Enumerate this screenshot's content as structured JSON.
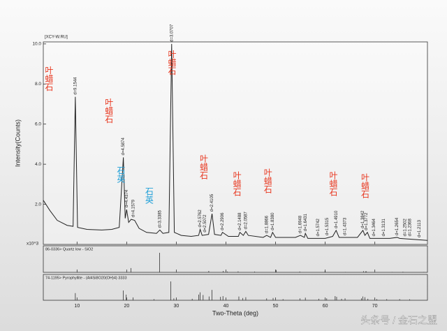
{
  "chart_data": {
    "type": "line",
    "title": "[XCY-W.RU]",
    "xlabel": "Two-Theta (deg)",
    "ylabel": "Intensity(Counts)",
    "y_multiplier": "x10^3",
    "color": "#222222",
    "x": [
      3.2,
      4.5,
      6,
      8,
      9.2,
      9.65,
      10.1,
      12,
      15,
      17,
      18.5,
      19.33,
      19.7,
      19.99,
      20.4,
      20.9,
      21.6,
      22.5,
      24,
      26,
      26.68,
      27.3,
      28.5,
      29.06,
      29.6,
      31,
      33,
      34.5,
      34.8,
      35.2,
      36.5,
      37.2,
      37.7,
      39,
      39.3,
      40.5,
      42.5,
      42.8,
      43.5,
      44.0,
      44.5,
      47.5,
      48.2,
      49.0,
      49.4,
      50,
      54,
      55,
      55.8,
      56.0,
      56.5,
      60,
      61.5,
      62.2,
      62.8,
      66.5,
      67.6,
      68.0,
      68.5,
      69,
      73,
      74.5,
      75,
      80.6
    ],
    "values": [
      2.2,
      1.7,
      1.2,
      0.95,
      0.9,
      7.36,
      0.85,
      0.75,
      0.72,
      0.75,
      0.85,
      4.34,
      1.3,
      1.74,
      1.1,
      1.25,
      1.2,
      0.8,
      0.6,
      0.55,
      0.72,
      0.55,
      0.6,
      10.0,
      0.6,
      0.45,
      0.4,
      0.45,
      0.75,
      0.45,
      0.5,
      1.53,
      0.5,
      0.45,
      0.6,
      0.4,
      0.4,
      0.6,
      0.45,
      0.65,
      0.45,
      0.35,
      0.45,
      0.35,
      0.6,
      0.35,
      0.35,
      0.45,
      0.35,
      0.55,
      0.3,
      0.3,
      0.4,
      0.7,
      0.35,
      0.35,
      0.7,
      0.45,
      0.6,
      0.3,
      0.3,
      0.35,
      0.3,
      0.2
    ],
    "xlim": [
      3.2,
      80.6
    ],
    "ylim": [
      0,
      10.1
    ],
    "xticks": [
      10,
      20,
      30,
      40,
      50,
      60,
      70
    ],
    "yticks": [
      {
        "value": 2,
        "label": "2.0"
      },
      {
        "value": 4,
        "label": "4.0"
      },
      {
        "value": 6,
        "label": "6.0"
      },
      {
        "value": 8,
        "label": "8.0"
      },
      {
        "value": 10,
        "label": "10.0"
      }
    ],
    "peak_labels": [
      {
        "text": "d=9.1544",
        "x": 9.65,
        "y": 7.36
      },
      {
        "text": "d=4.5874",
        "x": 19.33,
        "y": 4.34
      },
      {
        "text": "d=4.4374",
        "x": 19.99,
        "y": 1.74
      },
      {
        "text": "d=4.1579",
        "x": 21.35,
        "y": 1.25
      },
      {
        "text": "d=3.3385",
        "x": 26.68,
        "y": 0.72
      },
      {
        "text": "d=3.0707",
        "x": 29.06,
        "y": 10.0
      },
      {
        "text": "d=2.5762",
        "x": 34.8,
        "y": 0.75
      },
      {
        "text": "d=2.5072",
        "x": 35.8,
        "y": 0.5
      },
      {
        "text": "d=2.4105",
        "x": 37.2,
        "y": 1.53
      },
      {
        "text": "d=2.2906",
        "x": 39.3,
        "y": 0.6
      },
      {
        "text": "d=2.1488",
        "x": 42.8,
        "y": 0.6
      },
      {
        "text": "d=2.0587",
        "x": 44.0,
        "y": 0.65
      },
      {
        "text": "d=1.8866",
        "x": 48.2,
        "y": 0.45
      },
      {
        "text": "d=1.8380",
        "x": 49.4,
        "y": 0.6
      },
      {
        "text": "d=1.6948",
        "x": 55.0,
        "y": 0.45
      },
      {
        "text": "d=1.6431",
        "x": 56.0,
        "y": 0.55
      },
      {
        "text": "d=1.5742",
        "x": 58.6,
        "y": 0.3
      },
      {
        "text": "d=1.5315",
        "x": 60.4,
        "y": 0.35
      },
      {
        "text": "d=1.4910",
        "x": 62.2,
        "y": 0.7
      },
      {
        "text": "d=1.4373",
        "x": 64.0,
        "y": 0.35
      },
      {
        "text": "d=1.3842",
        "x": 67.6,
        "y": 0.7
      },
      {
        "text": "d=1.3772",
        "x": 68.3,
        "y": 0.6
      },
      {
        "text": "d=1.3464",
        "x": 69.8,
        "y": 0.3
      },
      {
        "text": "d=1.3131",
        "x": 71.8,
        "y": 0.3
      },
      {
        "text": "d=1.2654",
        "x": 74.5,
        "y": 0.35
      },
      {
        "text": "d=1.2502",
        "x": 76.1,
        "y": 0.3
      },
      {
        "text": "d=1.2368",
        "x": 77.1,
        "y": 0.3
      },
      {
        "text": "d=1.2113",
        "x": 79.0,
        "y": 0.25
      }
    ],
    "phase_labels": [
      {
        "text": "叶蜡石",
        "x": 4.3,
        "y": 8.9,
        "color": "#e8371f"
      },
      {
        "text": "叶蜡石",
        "x": 16.4,
        "y": 7.3,
        "color": "#e8371f"
      },
      {
        "text": "石英",
        "x": 18.8,
        "y": 3.9,
        "color": "#1e9fd8"
      },
      {
        "text": "石英",
        "x": 24.5,
        "y": 2.85,
        "color": "#1e9fd8"
      },
      {
        "text": "叶蜡石",
        "x": 29.1,
        "y": 9.7,
        "color": "#e8371f"
      },
      {
        "text": "叶蜡石",
        "x": 35.5,
        "y": 4.5,
        "color": "#e8371f"
      },
      {
        "text": "叶蜡石",
        "x": 42.2,
        "y": 3.65,
        "color": "#e8371f"
      },
      {
        "text": "叶蜡石",
        "x": 48.4,
        "y": 3.8,
        "color": "#e8371f"
      },
      {
        "text": "叶蜡石",
        "x": 61.6,
        "y": 3.65,
        "color": "#e8371f"
      },
      {
        "text": "叶蜡石",
        "x": 68.0,
        "y": 3.55,
        "color": "#e8371f"
      }
    ],
    "references": [
      {
        "title": "86-0336> Quartz low - SiO2",
        "ylim": [
          0,
          100
        ],
        "x": [
          20.86,
          26.64,
          36.54,
          39.46,
          40.29,
          42.45,
          45.79,
          50.14,
          54.87,
          59.96,
          64.04,
          67.74,
          68.14,
          68.31,
          73.47,
          75.66,
          79.88
        ],
        "values": [
          22,
          100,
          7,
          7,
          4,
          5,
          4,
          12,
          4,
          8,
          2,
          6,
          5,
          5,
          2,
          3,
          2
        ]
      },
      {
        "title": "74-1195> Pyrophyllite - (Al4Si8O20(OH)4) 3333",
        "ylim": [
          0,
          100
        ],
        "x": [
          9.65,
          19.3,
          19.9,
          21.3,
          25.5,
          28.9,
          29.5,
          33.2,
          34.5,
          34.8,
          35.4,
          36.6,
          37.2,
          38.9,
          39.4,
          42.6,
          43.4,
          44.0,
          48.2,
          49.5,
          51.5,
          54.9,
          56.0,
          58.7,
          60.3,
          62.0,
          62.3,
          63.3,
          64.0,
          67.3,
          67.6,
          68.0,
          68.6,
          70.4,
          72.4,
          75,
          77
        ],
        "values": [
          38,
          52,
          30,
          15,
          6,
          100,
          10,
          8,
          30,
          42,
          28,
          20,
          55,
          18,
          22,
          20,
          12,
          16,
          10,
          12,
          6,
          10,
          14,
          8,
          10,
          22,
          18,
          8,
          10,
          10,
          20,
          16,
          8,
          6,
          6,
          6,
          5
        ]
      }
    ]
  },
  "watermark": "头条号 / 金石之盟"
}
